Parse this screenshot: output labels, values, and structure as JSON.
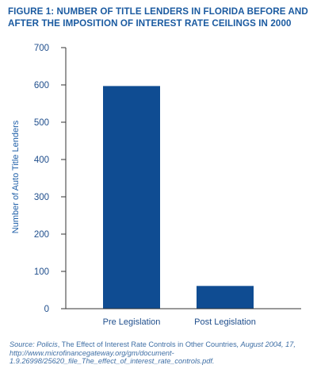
{
  "figure": {
    "title_line1": "FIGURE 1: NUMBER OF TITLE LENDERS IN FLORIDA BEFORE AND",
    "title_line2": "AFTER THE IMPOSITION OF INTEREST RATE CEILINGS IN 2000"
  },
  "chart_data": {
    "type": "bar",
    "title": "FIGURE 1: NUMBER OF TITLE LENDERS IN FLORIDA BEFORE AND AFTER THE IMPOSITION OF INTEREST RATE CEILINGS IN 2000",
    "categories": [
      "Pre Legislation",
      "Post Legislation"
    ],
    "values": [
      597,
      61
    ],
    "xlabel": "",
    "ylabel": "Number of Auto Title Lenders",
    "ylim": [
      0,
      700
    ],
    "yticks": [
      "0",
      "100",
      "200",
      "300",
      "400",
      "500",
      "600",
      "700"
    ],
    "grid": false,
    "legend": "none",
    "colors": {
      "bar": "#0f4c92",
      "axis": "#333333",
      "tick_label": "#1f4e8c",
      "ylabel": "#1f5fa8"
    }
  },
  "source": {
    "prefix": "Source: ",
    "publisher": "Policis",
    "separator": ", ",
    "report_title": "The Effect of Interest Rate Controls in Other Countries",
    "rest": ", August 2004, 17, http://www.microfinancegateway.org/gm/document-1.9.26998/25620_file_The_effect_of_interest_rate_controls.pdf."
  }
}
